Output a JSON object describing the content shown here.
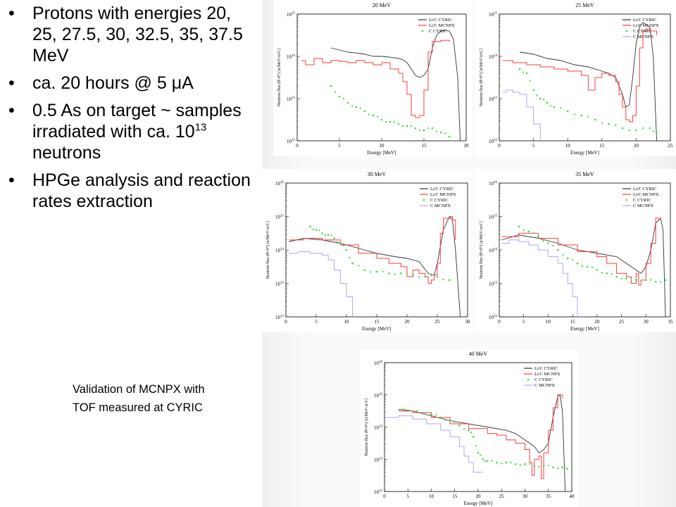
{
  "bullets": [
    {
      "text": "Protons with energies 20, 25, 27.5, 30, 32.5, 35, 37.5 MeV"
    },
    {
      "text": "ca. 20 hours @ 5 μA"
    },
    {
      "pre": "0.5 As on target ~ samples irradiated with ca. 10",
      "sup": "13",
      "post": " neutrons"
    },
    {
      "text": "HPGe analysis and reaction rates extraction"
    }
  ],
  "caption": [
    "Validation of MCNPX with",
    "TOF measured at CYRIC"
  ],
  "colors": {
    "cyric": "#333333",
    "mcnpx": "#ff3b3b",
    "c_cyric": "#33dd33",
    "c_mcnpx": "#aaaaee"
  },
  "chart_data": [
    {
      "type": "line",
      "title": "20 MeV",
      "xlabel": "Energy [MeV]",
      "ylabel": "Neutron flux (θ=0°) [n/MeV/sr/C]",
      "xlim": [
        0,
        20
      ],
      "xticks": [
        0,
        5,
        10,
        15,
        20
      ],
      "ylim_log10": [
        12,
        15
      ],
      "yticks": [
        {
          "v": 12,
          "label": "10^12"
        },
        {
          "v": 13,
          "label": "10^13"
        },
        {
          "v": 14,
          "label": "10^14"
        },
        {
          "v": 15,
          "label": "10^15"
        }
      ],
      "legend": [
        "Li/C CYRIC",
        "Li/C MCNPX",
        "C CYRIC"
      ],
      "series": [
        {
          "name": "Li/C CYRIC",
          "style": "line",
          "color": "#333333",
          "x": [
            4,
            5,
            6,
            7,
            8,
            9,
            10,
            11,
            12,
            12.5,
            13,
            13.5,
            14,
            14.5,
            15,
            15.5,
            16,
            16.5,
            17,
            17.5,
            18,
            18.5,
            19,
            19.3
          ],
          "y": [
            14.2,
            14.15,
            14.1,
            14.08,
            14.05,
            14.0,
            14.0,
            13.98,
            13.95,
            13.92,
            13.85,
            13.7,
            13.55,
            13.5,
            13.55,
            13.7,
            14.2,
            14.5,
            14.6,
            14.62,
            14.6,
            14.4,
            13.5,
            12.0
          ]
        },
        {
          "name": "Li/C MCNPX",
          "style": "step",
          "color": "#ff3b3b",
          "x": [
            0.5,
            1,
            2,
            3,
            4,
            5,
            6,
            7,
            8,
            9,
            10,
            11,
            12,
            12.5,
            13,
            13.5,
            14,
            14.5,
            15,
            15.5,
            16,
            17,
            18
          ],
          "y": [
            13.9,
            13.8,
            13.95,
            13.85,
            13.9,
            13.88,
            13.85,
            13.9,
            13.85,
            13.8,
            13.85,
            13.7,
            13.6,
            13.4,
            13.1,
            12.6,
            12.55,
            12.6,
            13.2,
            14.1,
            14.35,
            14.38,
            14.35
          ]
        },
        {
          "name": "C CYRIC",
          "style": "dots",
          "color": "#33dd33",
          "x": [
            4,
            5,
            6,
            7,
            8,
            9,
            10,
            11,
            12,
            13,
            14,
            15,
            16,
            17,
            18
          ],
          "y": [
            13.3,
            13.05,
            12.9,
            12.8,
            12.7,
            12.6,
            12.5,
            12.45,
            12.4,
            12.35,
            12.3,
            12.25,
            12.3,
            12.2,
            12.1
          ]
        }
      ]
    },
    {
      "type": "line",
      "title": "25 MeV",
      "xlabel": "Energy [MeV]",
      "ylabel": "Neutron flux (θ=0°) [n/MeV/sr/C]",
      "xlim": [
        0,
        25
      ],
      "xticks": [
        0,
        5,
        10,
        15,
        20,
        25
      ],
      "ylim_log10": [
        12,
        15
      ],
      "yticks": [
        {
          "v": 12,
          "label": "10^12"
        },
        {
          "v": 13,
          "label": "10^13"
        },
        {
          "v": 14,
          "label": "10^14"
        },
        {
          "v": 15,
          "label": "10^15"
        }
      ],
      "legend": [
        "Li/C CYRIC",
        "Li/C MCNPX",
        "C CYRIC",
        "C MCNPX"
      ],
      "series": [
        {
          "name": "Li/C CYRIC",
          "style": "line",
          "color": "#333333",
          "x": [
            3,
            5,
            7,
            9,
            11,
            13,
            15,
            16,
            17,
            18,
            18.5,
            19,
            19.5,
            20,
            20.5,
            21,
            22,
            22.5,
            23
          ],
          "y": [
            14.1,
            14.05,
            13.95,
            13.9,
            13.8,
            13.75,
            13.65,
            13.6,
            13.5,
            13.1,
            12.8,
            12.85,
            13.5,
            14.3,
            14.7,
            14.8,
            14.7,
            14.0,
            12.0
          ]
        },
        {
          "name": "Li/C MCNPX",
          "style": "step",
          "color": "#ff3b3b",
          "x": [
            0.5,
            2,
            4,
            6,
            8,
            10,
            12,
            13,
            14,
            15,
            16,
            17,
            17.5,
            18,
            18.5,
            19,
            19.5,
            20,
            20.5,
            21,
            21.5,
            22,
            23
          ],
          "y": [
            13.9,
            13.85,
            13.8,
            13.75,
            13.7,
            13.65,
            13.55,
            13.2,
            13.5,
            13.6,
            13.55,
            13.4,
            13.1,
            12.8,
            12.5,
            12.45,
            12.6,
            13.3,
            14.2,
            14.6,
            14.65,
            14.6,
            14.5
          ]
        },
        {
          "name": "C CYRIC",
          "style": "dots",
          "color": "#33dd33",
          "x": [
            3,
            4,
            5,
            6,
            7,
            8,
            10,
            12,
            14,
            16,
            18,
            20,
            22,
            23
          ],
          "y": [
            13.7,
            13.6,
            13.2,
            13.0,
            12.9,
            12.8,
            12.7,
            12.6,
            12.5,
            12.4,
            12.3,
            12.25,
            12.3,
            12.2
          ]
        },
        {
          "name": "C MCNPX",
          "style": "step",
          "color": "#aaaaee",
          "x": [
            0.5,
            1,
            2,
            3,
            4,
            5,
            6
          ],
          "y": [
            13.15,
            13.2,
            13.15,
            13.1,
            12.8,
            12.4,
            12.0
          ]
        }
      ]
    },
    {
      "type": "line",
      "title": "30 MeV",
      "xlabel": "Energy [MeV]",
      "ylabel": "Neutron flux (θ=0°) [n/MeV/sr/C]",
      "xlim": [
        0,
        30
      ],
      "xticks": [
        0,
        5,
        10,
        15,
        20,
        25,
        30
      ],
      "ylim_log10": [
        12,
        16
      ],
      "yticks": [
        {
          "v": 12,
          "label": "10^12"
        },
        {
          "v": 13,
          "label": "10^13"
        },
        {
          "v": 14,
          "label": "10^14"
        },
        {
          "v": 15,
          "label": "10^15"
        },
        {
          "v": 16,
          "label": "10^16"
        }
      ],
      "legend": [
        "Li/C CYRIC",
        "Li/C MCNPX",
        "C CYRIC",
        "C MCNPX"
      ],
      "series": [
        {
          "name": "Li/C CYRIC",
          "style": "line",
          "color": "#333333",
          "x": [
            0.5,
            3,
            6,
            9,
            12,
            15,
            18,
            20,
            22,
            23.5,
            24.5,
            25,
            26,
            27,
            27.5,
            28,
            28.8
          ],
          "y": [
            14.25,
            14.35,
            14.3,
            14.2,
            14.05,
            13.9,
            13.8,
            13.75,
            13.65,
            13.3,
            13.25,
            13.6,
            14.6,
            15.0,
            14.9,
            14.0,
            12.0
          ]
        },
        {
          "name": "Li/C MCNPX",
          "style": "step",
          "color": "#ff3b3b",
          "x": [
            0.5,
            3,
            6,
            9,
            12,
            15,
            17,
            19,
            20,
            21,
            22,
            23,
            23.5,
            24,
            24.5,
            25,
            25.5,
            26,
            27,
            27.5,
            28
          ],
          "y": [
            14.3,
            14.35,
            14.3,
            14.15,
            13.9,
            13.75,
            13.6,
            13.5,
            13.2,
            13.4,
            13.3,
            13.2,
            13.0,
            13.1,
            13.25,
            13.6,
            14.5,
            14.95,
            15.0,
            14.9,
            14.3
          ]
        },
        {
          "name": "C CYRIC",
          "style": "dots",
          "color": "#33dd33",
          "x": [
            4,
            5,
            6,
            7,
            8,
            9,
            10,
            11,
            13,
            15,
            17,
            19,
            21,
            23,
            25,
            27
          ],
          "y": [
            14.7,
            14.6,
            14.5,
            14.45,
            14.35,
            14.2,
            14.0,
            13.6,
            13.4,
            13.35,
            13.3,
            13.3,
            13.25,
            13.2,
            13.2,
            13.1
          ]
        },
        {
          "name": "C MCNPX",
          "style": "step",
          "color": "#aaaaee",
          "x": [
            0.5,
            2,
            4,
            6,
            7,
            8,
            9,
            10,
            11
          ],
          "y": [
            13.9,
            13.95,
            13.9,
            13.85,
            13.7,
            13.4,
            13.0,
            12.6,
            12.0
          ]
        }
      ]
    },
    {
      "type": "line",
      "title": "35 MeV",
      "xlabel": "Energy [MeV]",
      "ylabel": "Neutron flux (θ=0°) [n/MeV/sr/C]",
      "xlim": [
        0,
        35
      ],
      "xticks": [
        0,
        5,
        10,
        15,
        20,
        25,
        30,
        35
      ],
      "ylim_log10": [
        12,
        16
      ],
      "yticks": [
        {
          "v": 12,
          "label": "10^12"
        },
        {
          "v": 13,
          "label": "10^13"
        },
        {
          "v": 14,
          "label": "10^14"
        },
        {
          "v": 15,
          "label": "10^15"
        },
        {
          "v": 16,
          "label": "10^16"
        }
      ],
      "legend": [
        "Li/C CYRIC",
        "Li/C MCNPX",
        "C CYRIC",
        "C MCNPX"
      ],
      "series": [
        {
          "name": "Li/C CYRIC",
          "style": "line",
          "color": "#333333",
          "x": [
            0.5,
            4,
            8,
            12,
            16,
            20,
            24,
            26,
            28,
            29,
            30,
            31,
            32,
            33,
            33.5,
            34
          ],
          "y": [
            14.3,
            14.45,
            14.35,
            14.2,
            14.0,
            13.9,
            13.8,
            13.6,
            13.4,
            13.3,
            13.5,
            14.0,
            14.8,
            14.95,
            14.6,
            12.0
          ]
        },
        {
          "name": "Li/C MCNPX",
          "style": "step",
          "color": "#ff3b3b",
          "x": [
            0.5,
            4,
            8,
            12,
            16,
            20,
            22,
            24,
            26,
            27,
            28,
            28.5,
            29,
            30,
            31,
            32,
            33
          ],
          "y": [
            14.4,
            14.5,
            14.35,
            14.15,
            13.95,
            13.8,
            13.6,
            13.3,
            13.2,
            13.0,
            13.3,
            12.95,
            13.1,
            13.6,
            14.2,
            14.95,
            14.9
          ]
        },
        {
          "name": "C CYRIC",
          "style": "dots",
          "color": "#33dd33",
          "x": [
            4,
            6,
            8,
            10,
            12,
            14,
            16,
            18,
            20,
            22,
            24,
            26,
            28,
            30,
            32,
            34
          ],
          "y": [
            14.7,
            14.55,
            14.4,
            14.2,
            14.0,
            13.75,
            13.6,
            13.5,
            13.4,
            13.3,
            13.2,
            13.15,
            13.1,
            13.1,
            13.05,
            13.1
          ]
        },
        {
          "name": "C MCNPX",
          "style": "step",
          "color": "#aaaaee",
          "x": [
            0.5,
            2,
            4,
            6,
            8,
            10,
            12,
            13,
            14,
            15,
            16
          ],
          "y": [
            14.2,
            14.3,
            14.25,
            14.15,
            14.0,
            13.8,
            13.6,
            13.3,
            13.0,
            12.6,
            12.0
          ]
        }
      ]
    },
    {
      "type": "line",
      "title": "40 MeV",
      "xlabel": "Energy [MeV]",
      "ylabel": "Neutron flux (θ=0°) [n/MeV/sr/C]",
      "xlim": [
        0,
        40
      ],
      "xticks": [
        0,
        5,
        10,
        15,
        20,
        25,
        30,
        35,
        40
      ],
      "ylim_log10": [
        12,
        16
      ],
      "yticks": [
        {
          "v": 12,
          "label": "10^12"
        },
        {
          "v": 13,
          "label": "10^13"
        },
        {
          "v": 14,
          "label": "10^14"
        },
        {
          "v": 15,
          "label": "10^15"
        },
        {
          "v": 16,
          "label": "10^16"
        }
      ],
      "legend": [
        "Li/C CYRIC",
        "Li/C MCNPX",
        "C CYRIC",
        "C MCNPX"
      ],
      "series": [
        {
          "name": "Li/C CYRIC",
          "style": "line",
          "color": "#333333",
          "x": [
            3,
            6,
            10,
            14,
            18,
            22,
            26,
            28,
            30,
            32,
            33,
            34,
            35,
            36,
            37,
            37.5,
            38,
            38.6
          ],
          "y": [
            14.55,
            14.5,
            14.35,
            14.2,
            14.1,
            14.0,
            13.9,
            13.8,
            13.6,
            13.4,
            13.2,
            13.3,
            13.5,
            14.3,
            14.95,
            15.0,
            14.5,
            12.0
          ]
        },
        {
          "name": "Li/C MCNPX",
          "style": "step",
          "color": "#ff3b3b",
          "x": [
            3,
            6,
            10,
            14,
            18,
            22,
            24,
            26,
            28,
            30,
            31,
            31.5,
            32,
            33,
            33.5,
            34,
            35,
            36,
            37,
            38
          ],
          "y": [
            14.5,
            14.45,
            14.3,
            14.1,
            13.95,
            13.8,
            13.75,
            13.6,
            13.5,
            13.3,
            12.9,
            12.5,
            13.0,
            13.1,
            12.4,
            13.2,
            13.9,
            14.6,
            15.0,
            14.9
          ]
        },
        {
          "name": "C CYRIC",
          "style": "dots",
          "color": "#33dd33",
          "x": [
            4,
            6,
            8,
            10,
            12,
            14,
            16,
            18,
            19,
            20,
            21,
            22,
            24,
            26,
            28,
            30,
            32,
            34,
            36,
            38,
            39
          ],
          "y": [
            14.55,
            14.5,
            14.45,
            14.4,
            14.3,
            14.2,
            14.05,
            13.9,
            13.7,
            13.2,
            13.0,
            12.95,
            12.9,
            12.9,
            12.85,
            12.85,
            12.8,
            12.8,
            12.75,
            12.75,
            12.7
          ]
        },
        {
          "name": "C MCNPX",
          "style": "step",
          "color": "#aaaaee",
          "x": [
            0.5,
            3,
            6,
            9,
            12,
            14,
            16,
            17,
            18,
            19,
            20,
            21
          ],
          "y": [
            14.3,
            14.35,
            14.25,
            14.1,
            13.9,
            13.7,
            13.4,
            13.1,
            12.9,
            12.6,
            12.6,
            12.6
          ]
        }
      ]
    }
  ]
}
